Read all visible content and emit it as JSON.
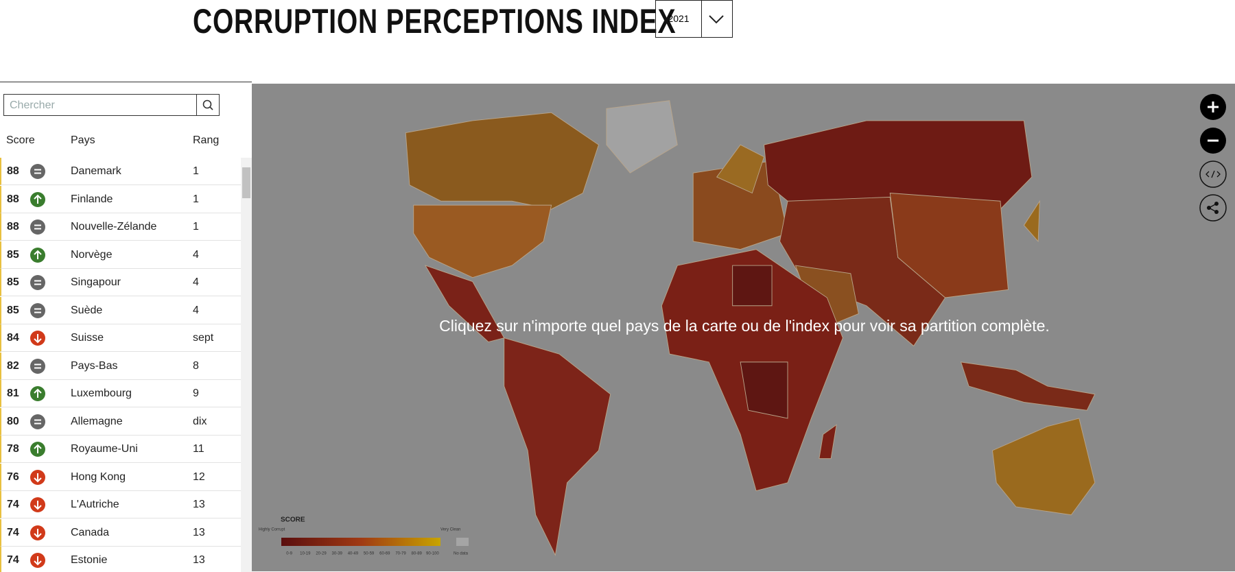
{
  "header": {
    "title": "CORRUPTION PERCEPTIONS INDEX",
    "year": "2021"
  },
  "sidebar": {
    "search_placeholder": "Chercher",
    "columns": [
      "Score",
      "Pays",
      "Rang"
    ],
    "rows": [
      {
        "score": 88,
        "trend": "equal",
        "country": "Danemark",
        "rank": "1"
      },
      {
        "score": 88,
        "trend": "up",
        "country": "Finlande",
        "rank": "1"
      },
      {
        "score": 88,
        "trend": "equal",
        "country": "Nouvelle-Zélande",
        "rank": "1"
      },
      {
        "score": 85,
        "trend": "up",
        "country": "Norvège",
        "rank": "4"
      },
      {
        "score": 85,
        "trend": "equal",
        "country": "Singapour",
        "rank": "4"
      },
      {
        "score": 85,
        "trend": "equal",
        "country": "Suède",
        "rank": "4"
      },
      {
        "score": 84,
        "trend": "down",
        "country": "Suisse",
        "rank": "sept"
      },
      {
        "score": 82,
        "trend": "equal",
        "country": "Pays-Bas",
        "rank": "8"
      },
      {
        "score": 81,
        "trend": "up",
        "country": "Luxembourg",
        "rank": "9"
      },
      {
        "score": 80,
        "trend": "equal",
        "country": "Allemagne",
        "rank": "dix"
      },
      {
        "score": 78,
        "trend": "up",
        "country": "Royaume-Uni",
        "rank": "11"
      },
      {
        "score": 76,
        "trend": "down",
        "country": "Hong Kong",
        "rank": "12"
      },
      {
        "score": 74,
        "trend": "down",
        "country": "L'Autriche",
        "rank": "13"
      },
      {
        "score": 74,
        "trend": "down",
        "country": "Canada",
        "rank": "13"
      },
      {
        "score": 74,
        "trend": "down",
        "country": "Estonie",
        "rank": "13"
      }
    ]
  },
  "map": {
    "message": "Cliquez sur n'importe quel pays de la carte ou de l'index pour voir sa partition complète.",
    "legend": {
      "title": "SCORE",
      "low_label": "Highly Corrupt",
      "high_label": "Very Clean",
      "bins": [
        "0-9",
        "10-19",
        "20-29",
        "30-39",
        "40-49",
        "50-59",
        "60-69",
        "70-79",
        "80-89",
        "90-100"
      ],
      "no_data": "No data"
    }
  }
}
